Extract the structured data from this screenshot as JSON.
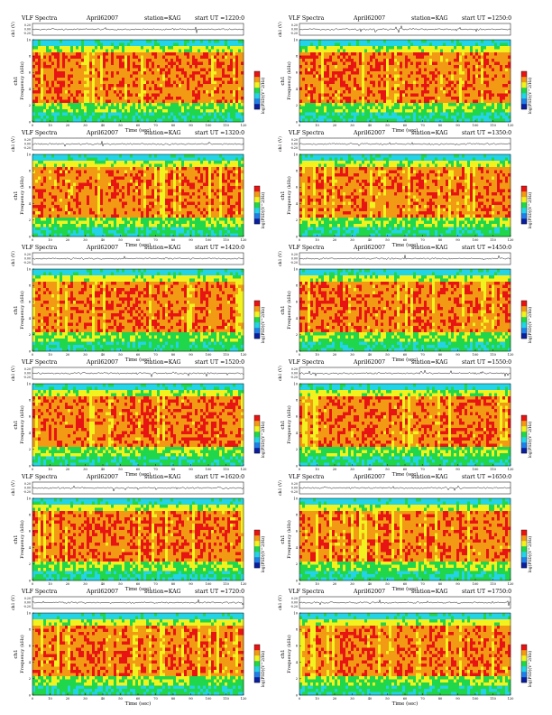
{
  "chart_data": {
    "type": "heatmap",
    "title_prefix": "VLF Spectra",
    "date": "April62007",
    "station": "station=KAG",
    "ut_prefix": "start UT =",
    "x_axis": {
      "label": "Time (sec)",
      "range": [
        0,
        120
      ],
      "ticks": [
        0,
        10,
        20,
        30,
        40,
        50,
        60,
        70,
        80,
        90,
        100,
        110,
        120
      ]
    },
    "y_axis": {
      "label": "Frequency (kHz)",
      "range": [
        0,
        10
      ],
      "ticks": [
        0,
        2,
        4,
        6,
        8,
        10
      ]
    },
    "waveform_axis": {
      "label": "ch1 (V)",
      "ticks": [
        "0.20",
        "0.00",
        "-0.20"
      ]
    },
    "channel_label": "ch1",
    "colorbar": {
      "label": "log(PSD)(V^2/Hz)",
      "colors": [
        "#0b1f9e",
        "#1f7fe8",
        "#23d3e6",
        "#20d64a",
        "#f2f21e",
        "#f29a14",
        "#e81414"
      ]
    },
    "panels": [
      {
        "start_ut": "1220:0"
      },
      {
        "start_ut": "1250:0"
      },
      {
        "start_ut": "1320:0"
      },
      {
        "start_ut": "1350:0"
      },
      {
        "start_ut": "1420:0"
      },
      {
        "start_ut": "1450:0"
      },
      {
        "start_ut": "1520:0"
      },
      {
        "start_ut": "1550:0"
      },
      {
        "start_ut": "1620:0"
      },
      {
        "start_ut": "1650:0"
      },
      {
        "start_ut": "1720:0"
      },
      {
        "start_ut": "1750:0"
      }
    ]
  }
}
